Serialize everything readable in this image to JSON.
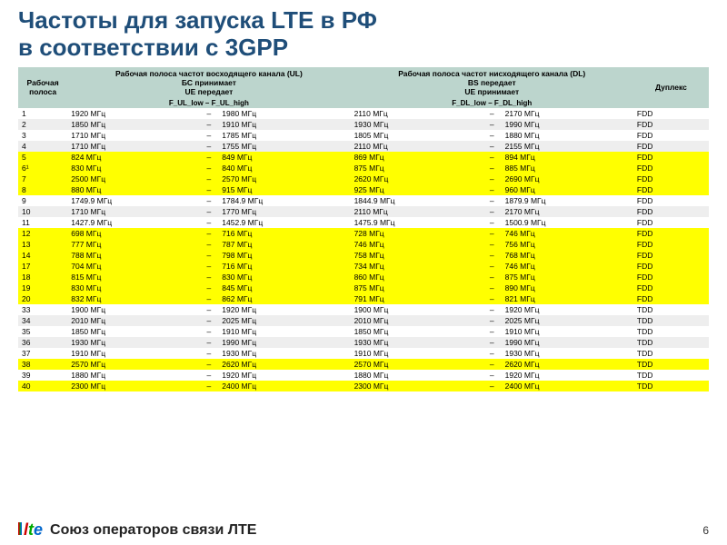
{
  "title_line1": "Частоты для запуска LTE в РФ",
  "title_line2": "в соответствии с 3GPP",
  "footer_org": "Союз операторов связи ЛТЕ",
  "page_num": "6",
  "cols": {
    "band": "Рабочая полоса",
    "ul": "Рабочая полоса частот восходящего канала (UL)\nБС принимает\nUE передает",
    "dl": "Рабочая полоса частот нисходящего канала (DL)\nBS передает\nUE принимает",
    "dup": "Дуплекс",
    "ul_sub": "F_UL_low – F_UL_high",
    "dl_sub": "F_DL_low – F_DL_high"
  },
  "rows": [
    {
      "b": "1",
      "ul_lo": "1920 МГц",
      "ul_hi": "1980 МГц",
      "dl_lo": "2110 МГц",
      "dl_hi": "2170 МГц",
      "d": "FDD",
      "hl": false,
      "alt": 0
    },
    {
      "b": "2",
      "ul_lo": "1850 МГц",
      "ul_hi": "1910 МГц",
      "dl_lo": "1930 МГц",
      "dl_hi": "1990 МГц",
      "d": "FDD",
      "hl": false,
      "alt": 1
    },
    {
      "b": "3",
      "ul_lo": "1710 МГц",
      "ul_hi": "1785 МГц",
      "dl_lo": "1805 МГц",
      "dl_hi": "1880 МГц",
      "d": "FDD",
      "hl": false,
      "alt": 0
    },
    {
      "b": "4",
      "ul_lo": "1710 МГц",
      "ul_hi": "1755 МГц",
      "dl_lo": "2110 МГц",
      "dl_hi": "2155 МГц",
      "d": "FDD",
      "hl": false,
      "alt": 1
    },
    {
      "b": "5",
      "ul_lo": "824 МГц",
      "ul_hi": "849 МГц",
      "dl_lo": "869 МГц",
      "dl_hi": "894 МГц",
      "d": "FDD",
      "hl": true,
      "alt": 0
    },
    {
      "b": "6¹",
      "ul_lo": "830 МГц",
      "ul_hi": "840 МГц",
      "dl_lo": "875 МГц",
      "dl_hi": "885 МГц",
      "d": "FDD",
      "hl": true,
      "alt": 1
    },
    {
      "b": "7",
      "ul_lo": "2500 МГц",
      "ul_hi": "2570 МГц",
      "dl_lo": "2620 МГц",
      "dl_hi": "2690 МГц",
      "d": "FDD",
      "hl": true,
      "alt": 0
    },
    {
      "b": "8",
      "ul_lo": "880 МГц",
      "ul_hi": "915 МГц",
      "dl_lo": "925 МГц",
      "dl_hi": "960 МГц",
      "d": "FDD",
      "hl": true,
      "alt": 1
    },
    {
      "b": "9",
      "ul_lo": "1749.9 МГц",
      "ul_hi": "1784.9 МГц",
      "dl_lo": "1844.9 МГц",
      "dl_hi": "1879.9 МГц",
      "d": "FDD",
      "hl": false,
      "alt": 0
    },
    {
      "b": "10",
      "ul_lo": "1710 МГц",
      "ul_hi": "1770 МГц",
      "dl_lo": "2110 МГц",
      "dl_hi": "2170 МГц",
      "d": "FDD",
      "hl": false,
      "alt": 1
    },
    {
      "b": "11",
      "ul_lo": "1427.9 МГц",
      "ul_hi": "1452.9 МГц",
      "dl_lo": "1475.9 МГц",
      "dl_hi": "1500.9 МГц",
      "d": "FDD",
      "hl": false,
      "alt": 0
    },
    {
      "b": "12",
      "ul_lo": "698 МГц",
      "ul_hi": "716 МГц",
      "dl_lo": "728 МГц",
      "dl_hi": "746 МГц",
      "d": "FDD",
      "hl": true,
      "alt": 1
    },
    {
      "b": "13",
      "ul_lo": "777 МГц",
      "ul_hi": "787 МГц",
      "dl_lo": "746 МГц",
      "dl_hi": "756 МГц",
      "d": "FDD",
      "hl": true,
      "alt": 0
    },
    {
      "b": "14",
      "ul_lo": "788 МГц",
      "ul_hi": "798 МГц",
      "dl_lo": "758 МГц",
      "dl_hi": "768 МГц",
      "d": "FDD",
      "hl": true,
      "alt": 1
    },
    {
      "b": "17",
      "ul_lo": "704 МГц",
      "ul_hi": "716 МГц",
      "dl_lo": "734 МГц",
      "dl_hi": "746 МГц",
      "d": "FDD",
      "hl": true,
      "alt": 0
    },
    {
      "b": "18",
      "ul_lo": "815 МГц",
      "ul_hi": "830 МГц",
      "dl_lo": "860 МГц",
      "dl_hi": "875 МГц",
      "d": "FDD",
      "hl": true,
      "alt": 1
    },
    {
      "b": "19",
      "ul_lo": "830 МГц",
      "ul_hi": "845 МГц",
      "dl_lo": "875 МГц",
      "dl_hi": "890 МГц",
      "d": "FDD",
      "hl": true,
      "alt": 0
    },
    {
      "b": "20",
      "ul_lo": "832 МГц",
      "ul_hi": "862 МГц",
      "dl_lo": "791 МГц",
      "dl_hi": "821 МГц",
      "d": "FDD",
      "hl": true,
      "alt": 1
    },
    {
      "b": "33",
      "ul_lo": "1900 МГц",
      "ul_hi": "1920 МГц",
      "dl_lo": "1900 МГц",
      "dl_hi": "1920 МГц",
      "d": "TDD",
      "hl": false,
      "alt": 0
    },
    {
      "b": "34",
      "ul_lo": "2010 МГц",
      "ul_hi": "2025 МГц",
      "dl_lo": "2010 МГц",
      "dl_hi": "2025 МГц",
      "d": "TDD",
      "hl": false,
      "alt": 1
    },
    {
      "b": "35",
      "ul_lo": "1850 МГц",
      "ul_hi": "1910 МГц",
      "dl_lo": "1850 МГц",
      "dl_hi": "1910 МГц",
      "d": "TDD",
      "hl": false,
      "alt": 0
    },
    {
      "b": "36",
      "ul_lo": "1930 МГц",
      "ul_hi": "1990 МГц",
      "dl_lo": "1930 МГц",
      "dl_hi": "1990 МГц",
      "d": "TDD",
      "hl": false,
      "alt": 1
    },
    {
      "b": "37",
      "ul_lo": "1910 МГц",
      "ul_hi": "1930 МГц",
      "dl_lo": "1910 МГц",
      "dl_hi": "1930 МГц",
      "d": "TDD",
      "hl": false,
      "alt": 0
    },
    {
      "b": "38",
      "ul_lo": "2570 МГц",
      "ul_hi": "2620 МГц",
      "dl_lo": "2570 МГц",
      "dl_hi": "2620 МГц",
      "d": "TDD",
      "hl": true,
      "alt": 1
    },
    {
      "b": "39",
      "ul_lo": "1880 МГц",
      "ul_hi": "1920 МГц",
      "dl_lo": "1880 МГц",
      "dl_hi": "1920 МГц",
      "d": "TDD",
      "hl": false,
      "alt": 0
    },
    {
      "b": "40",
      "ul_lo": "2300 МГц",
      "ul_hi": "2400 МГц",
      "dl_lo": "2300 МГц",
      "dl_hi": "2400 МГц",
      "d": "TDD",
      "hl": true,
      "alt": 1
    }
  ]
}
